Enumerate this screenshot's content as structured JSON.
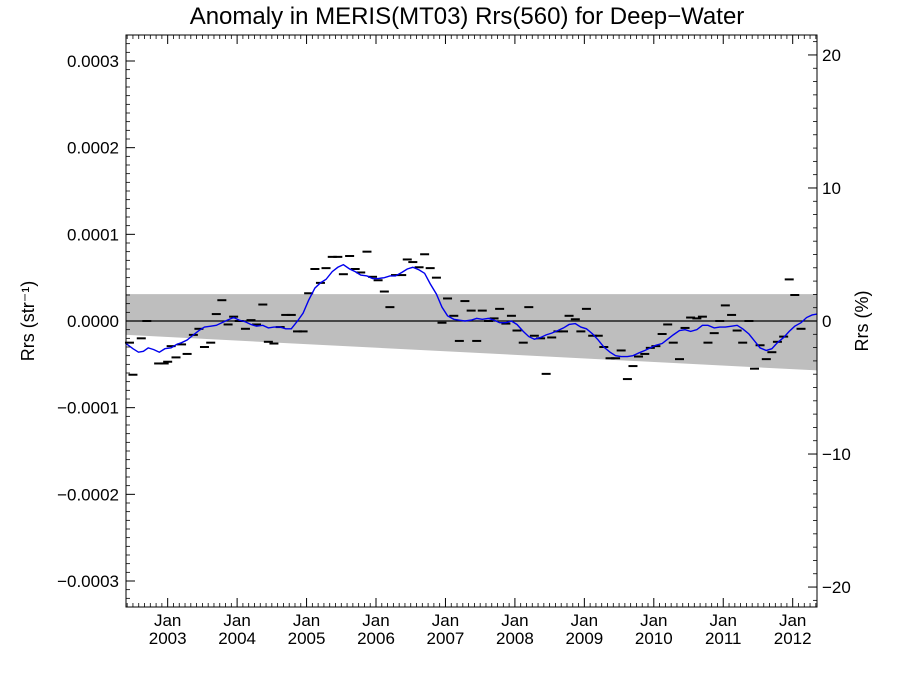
{
  "chart_data": {
    "type": "line",
    "title": "Anomaly in MERIS(MT03) Rrs(560) for Deep−Water",
    "ylabel_left": "Rrs (str⁻¹)",
    "ylabel_right": "Rrs (%)",
    "xlim": [
      2002.4,
      2012.35
    ],
    "ylim_left": [
      -0.00033,
      0.00033
    ],
    "ylim_right": [
      -21.5,
      21.5
    ],
    "left_ticks": [
      {
        "value": 0.0003,
        "label": "0.0003"
      },
      {
        "value": 0.0002,
        "label": "0.0002"
      },
      {
        "value": 0.0001,
        "label": "0.0001"
      },
      {
        "value": 0.0,
        "label": "0.0000"
      },
      {
        "value": -0.0001,
        "label": "−0.0001"
      },
      {
        "value": -0.0002,
        "label": "−0.0002"
      },
      {
        "value": -0.0003,
        "label": "−0.0003"
      }
    ],
    "right_ticks": [
      {
        "value": 20,
        "label": "20"
      },
      {
        "value": 10,
        "label": "10"
      },
      {
        "value": 0,
        "label": "0"
      },
      {
        "value": -10,
        "label": "−10"
      },
      {
        "value": -20,
        "label": "−20"
      }
    ],
    "x_ticks": [
      {
        "value": 2003.0,
        "line1": "Jan",
        "line2": "2003"
      },
      {
        "value": 2004.0,
        "line1": "Jan",
        "line2": "2004"
      },
      {
        "value": 2005.0,
        "line1": "Jan",
        "line2": "2005"
      },
      {
        "value": 2006.0,
        "line1": "Jan",
        "line2": "2006"
      },
      {
        "value": 2007.0,
        "line1": "Jan",
        "line2": "2007"
      },
      {
        "value": 2008.0,
        "line1": "Jan",
        "line2": "2008"
      },
      {
        "value": 2009.0,
        "line1": "Jan",
        "line2": "2009"
      },
      {
        "value": 2010.0,
        "line1": "Jan",
        "line2": "2010"
      },
      {
        "value": 2011.0,
        "line1": "Jan",
        "line2": "2011"
      },
      {
        "value": 2012.0,
        "line1": "Jan",
        "line2": "2012"
      }
    ],
    "band": {
      "upper": 3.1e-05,
      "lower_start": -1.6e-05,
      "lower_end": -5.7e-05,
      "color": "#bebebe"
    },
    "zero_line": 0.0,
    "monthly_points": {
      "color": "#000000",
      "data": [
        [
          2002.45,
          -2.5e-05
        ],
        [
          2002.5,
          -6.2e-05
        ],
        [
          2002.62,
          -2e-05
        ],
        [
          2002.7,
          0.0
        ],
        [
          2002.87,
          -4.9e-05
        ],
        [
          2002.95,
          -4.9e-05
        ],
        [
          2003.0,
          -4.7e-05
        ],
        [
          2003.05,
          -2.9e-05
        ],
        [
          2003.12,
          -4.2e-05
        ],
        [
          2003.2,
          -2.7e-05
        ],
        [
          2003.28,
          -3.8e-05
        ],
        [
          2003.37,
          -1.6e-05
        ],
        [
          2003.45,
          -9e-06
        ],
        [
          2003.53,
          -3e-05
        ],
        [
          2003.62,
          -2.5e-05
        ],
        [
          2003.7,
          8e-06
        ],
        [
          2003.78,
          2.4e-05
        ],
        [
          2003.87,
          -4e-06
        ],
        [
          2003.95,
          5e-06
        ],
        [
          2004.03,
          0.0
        ],
        [
          2004.12,
          -9e-06
        ],
        [
          2004.2,
          1e-06
        ],
        [
          2004.28,
          -4e-06
        ],
        [
          2004.37,
          1.9e-05
        ],
        [
          2004.45,
          -2.4e-05
        ],
        [
          2004.53,
          -2.6e-05
        ],
        [
          2004.62,
          -7e-06
        ],
        [
          2004.7,
          7e-06
        ],
        [
          2004.78,
          7e-06
        ],
        [
          2004.87,
          -1.2e-05
        ],
        [
          2004.95,
          -1.2e-05
        ],
        [
          2005.03,
          3.2e-05
        ],
        [
          2005.12,
          6e-05
        ],
        [
          2005.2,
          4.4e-05
        ],
        [
          2005.28,
          6.1e-05
        ],
        [
          2005.37,
          7.4e-05
        ],
        [
          2005.45,
          7.4e-05
        ],
        [
          2005.53,
          5.4e-05
        ],
        [
          2005.62,
          7.5e-05
        ],
        [
          2005.7,
          6e-05
        ],
        [
          2005.78,
          5.6e-05
        ],
        [
          2005.87,
          8e-05
        ],
        [
          2005.95,
          5.1e-05
        ],
        [
          2006.03,
          4.7e-05
        ],
        [
          2006.12,
          3.4e-05
        ],
        [
          2006.2,
          1.6e-05
        ],
        [
          2006.28,
          5.3e-05
        ],
        [
          2006.37,
          5.3e-05
        ],
        [
          2006.45,
          7.1e-05
        ],
        [
          2006.53,
          6.8e-05
        ],
        [
          2006.62,
          6.2e-05
        ],
        [
          2006.7,
          7.7e-05
        ],
        [
          2006.78,
          6.1e-05
        ],
        [
          2006.87,
          5e-05
        ],
        [
          2006.95,
          -2e-06
        ],
        [
          2007.03,
          2.6e-05
        ],
        [
          2007.12,
          6e-06
        ],
        [
          2007.2,
          -2.3e-05
        ],
        [
          2007.28,
          2.3e-05
        ],
        [
          2007.37,
          1.2e-05
        ],
        [
          2007.45,
          -2.3e-05
        ],
        [
          2007.53,
          1.2e-05
        ],
        [
          2007.62,
          0.0
        ],
        [
          2007.7,
          3e-06
        ],
        [
          2007.78,
          1.4e-05
        ],
        [
          2007.87,
          -3e-06
        ],
        [
          2007.95,
          6e-06
        ],
        [
          2008.03,
          -1.1e-05
        ],
        [
          2008.12,
          -2.5e-05
        ],
        [
          2008.2,
          1.6e-05
        ],
        [
          2008.28,
          -1.7e-05
        ],
        [
          2008.37,
          -2e-05
        ],
        [
          2008.45,
          -6.1e-05
        ],
        [
          2008.53,
          -1.9e-05
        ],
        [
          2008.62,
          -1.2e-05
        ],
        [
          2008.7,
          -1.2e-05
        ],
        [
          2008.78,
          6e-06
        ],
        [
          2008.87,
          2e-06
        ],
        [
          2008.95,
          -1.2e-05
        ],
        [
          2009.03,
          1.4e-05
        ],
        [
          2009.12,
          -1.7e-05
        ],
        [
          2009.2,
          -1.7e-05
        ],
        [
          2009.28,
          -3e-05
        ],
        [
          2009.37,
          -4.3e-05
        ],
        [
          2009.45,
          -4.3e-05
        ],
        [
          2009.53,
          -3.4e-05
        ],
        [
          2009.62,
          -6.7e-05
        ],
        [
          2009.7,
          -5.2e-05
        ],
        [
          2009.78,
          -4.1e-05
        ],
        [
          2009.87,
          -3.8e-05
        ],
        [
          2009.95,
          -3.1e-05
        ],
        [
          2010.03,
          -2.9e-05
        ],
        [
          2010.12,
          -1.5e-05
        ],
        [
          2010.2,
          -4e-06
        ],
        [
          2010.28,
          -2.5e-05
        ],
        [
          2010.37,
          -4.4e-05
        ],
        [
          2010.45,
          -8e-06
        ],
        [
          2010.53,
          4e-06
        ],
        [
          2010.62,
          3e-06
        ],
        [
          2010.7,
          5e-06
        ],
        [
          2010.78,
          -2.5e-05
        ],
        [
          2010.87,
          -1.4e-05
        ],
        [
          2010.95,
          0.0
        ],
        [
          2011.03,
          1.8e-05
        ],
        [
          2011.12,
          7e-06
        ],
        [
          2011.2,
          -1.1e-05
        ],
        [
          2011.28,
          -2.5e-05
        ],
        [
          2011.37,
          0.0
        ],
        [
          2011.45,
          -5.5e-05
        ],
        [
          2011.53,
          -2.8e-05
        ],
        [
          2011.62,
          -4.4e-05
        ],
        [
          2011.7,
          -3.6e-05
        ],
        [
          2011.78,
          -2.4e-05
        ],
        [
          2011.87,
          -1.8e-05
        ],
        [
          2011.95,
          4.8e-05
        ],
        [
          2012.03,
          3e-05
        ],
        [
          2012.12,
          -9e-06
        ]
      ]
    },
    "smoothed_series": {
      "color": "#0000ee",
      "data": [
        [
          2002.4,
          -2.6e-05
        ],
        [
          2002.5,
          -3.2e-05
        ],
        [
          2002.58,
          -3.6e-05
        ],
        [
          2002.65,
          -3.5e-05
        ],
        [
          2002.72,
          -3.1e-05
        ],
        [
          2002.8,
          -3.3e-05
        ],
        [
          2002.88,
          -3.6e-05
        ],
        [
          2002.96,
          -3.2e-05
        ],
        [
          2003.05,
          -3.1e-05
        ],
        [
          2003.13,
          -2.7e-05
        ],
        [
          2003.2,
          -2.5e-05
        ],
        [
          2003.28,
          -2.2e-05
        ],
        [
          2003.37,
          -1.6e-05
        ],
        [
          2003.45,
          -1.1e-05
        ],
        [
          2003.53,
          -7e-06
        ],
        [
          2003.62,
          -6e-06
        ],
        [
          2003.7,
          -5e-06
        ],
        [
          2003.78,
          -2e-06
        ],
        [
          2003.86,
          1e-06
        ],
        [
          2003.95,
          4e-06
        ],
        [
          2004.03,
          1e-06
        ],
        [
          2004.12,
          -1e-06
        ],
        [
          2004.2,
          -4e-06
        ],
        [
          2004.28,
          -6e-06
        ],
        [
          2004.37,
          -5e-06
        ],
        [
          2004.45,
          -8e-06
        ],
        [
          2004.53,
          -7e-06
        ],
        [
          2004.62,
          -7e-06
        ],
        [
          2004.7,
          -9e-06
        ],
        [
          2004.78,
          -9e-06
        ],
        [
          2004.87,
          0.0
        ],
        [
          2004.95,
          9e-06
        ],
        [
          2005.03,
          2.4e-05
        ],
        [
          2005.12,
          3.8e-05
        ],
        [
          2005.2,
          4.4e-05
        ],
        [
          2005.28,
          4.8e-05
        ],
        [
          2005.37,
          5.7e-05
        ],
        [
          2005.45,
          6.2e-05
        ],
        [
          2005.53,
          6.5e-05
        ],
        [
          2005.62,
          6e-05
        ],
        [
          2005.7,
          5.7e-05
        ],
        [
          2005.78,
          5.3e-05
        ],
        [
          2005.87,
          5.2e-05
        ],
        [
          2005.95,
          4.9e-05
        ],
        [
          2006.03,
          4.9e-05
        ],
        [
          2006.12,
          5e-05
        ],
        [
          2006.2,
          5.2e-05
        ],
        [
          2006.28,
          5.2e-05
        ],
        [
          2006.37,
          5.6e-05
        ],
        [
          2006.45,
          6e-05
        ],
        [
          2006.53,
          6.2e-05
        ],
        [
          2006.62,
          5.9e-05
        ],
        [
          2006.7,
          5.5e-05
        ],
        [
          2006.78,
          4.3e-05
        ],
        [
          2006.87,
          3.1e-05
        ],
        [
          2006.95,
          1.6e-05
        ],
        [
          2007.03,
          6e-06
        ],
        [
          2007.12,
          2e-06
        ],
        [
          2007.2,
          1e-06
        ],
        [
          2007.28,
          0.0
        ],
        [
          2007.37,
          1e-06
        ],
        [
          2007.45,
          3e-06
        ],
        [
          2007.53,
          2e-06
        ],
        [
          2007.62,
          3e-06
        ],
        [
          2007.7,
          1e-06
        ],
        [
          2007.78,
          -2e-06
        ],
        [
          2007.87,
          -2e-06
        ],
        [
          2007.95,
          0.0
        ],
        [
          2008.03,
          -4e-06
        ],
        [
          2008.12,
          -1.2e-05
        ],
        [
          2008.2,
          -1.8e-05
        ],
        [
          2008.28,
          -2.1e-05
        ],
        [
          2008.37,
          -1.9e-05
        ],
        [
          2008.45,
          -1.6e-05
        ],
        [
          2008.53,
          -1.4e-05
        ],
        [
          2008.62,
          -1.1e-05
        ],
        [
          2008.7,
          -8e-06
        ],
        [
          2008.78,
          -4e-06
        ],
        [
          2008.87,
          -3e-06
        ],
        [
          2008.95,
          -7e-06
        ],
        [
          2009.03,
          -9e-06
        ],
        [
          2009.12,
          -1.5e-05
        ],
        [
          2009.2,
          -2.2e-05
        ],
        [
          2009.28,
          -3e-05
        ],
        [
          2009.37,
          -3.6e-05
        ],
        [
          2009.45,
          -4e-05
        ],
        [
          2009.53,
          -4.1e-05
        ],
        [
          2009.62,
          -4.1e-05
        ],
        [
          2009.7,
          -4e-05
        ],
        [
          2009.78,
          -3.7e-05
        ],
        [
          2009.87,
          -3.4e-05
        ],
        [
          2009.95,
          -3.1e-05
        ],
        [
          2010.03,
          -2.8e-05
        ],
        [
          2010.12,
          -2.6e-05
        ],
        [
          2010.2,
          -2.1e-05
        ],
        [
          2010.28,
          -1.6e-05
        ],
        [
          2010.37,
          -1.1e-05
        ],
        [
          2010.45,
          -1e-05
        ],
        [
          2010.53,
          -1.2e-05
        ],
        [
          2010.62,
          -1e-05
        ],
        [
          2010.7,
          -5e-06
        ],
        [
          2010.78,
          -5e-06
        ],
        [
          2010.87,
          -8e-06
        ],
        [
          2010.95,
          -7e-06
        ],
        [
          2011.03,
          -7e-06
        ],
        [
          2011.12,
          -6e-06
        ],
        [
          2011.2,
          -5e-06
        ],
        [
          2011.28,
          -9e-06
        ],
        [
          2011.37,
          -1.5e-05
        ],
        [
          2011.45,
          -2.3e-05
        ],
        [
          2011.53,
          -3.1e-05
        ],
        [
          2011.62,
          -3.4e-05
        ],
        [
          2011.7,
          -3.2e-05
        ],
        [
          2011.78,
          -2.5e-05
        ],
        [
          2011.87,
          -1.9e-05
        ],
        [
          2011.95,
          -1.2e-05
        ],
        [
          2012.03,
          -6e-06
        ],
        [
          2012.12,
          -2e-06
        ],
        [
          2012.2,
          4e-06
        ],
        [
          2012.28,
          7e-06
        ],
        [
          2012.35,
          8e-06
        ]
      ]
    }
  }
}
